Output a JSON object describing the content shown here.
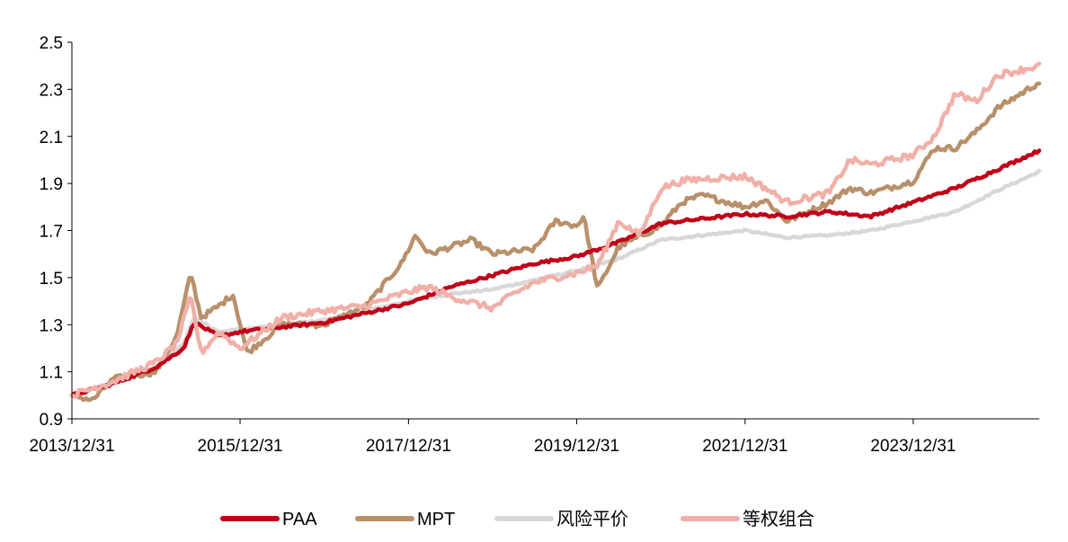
{
  "chart_data": {
    "type": "line",
    "title": "",
    "xlabel": "",
    "ylabel": "",
    "ylim": [
      0.9,
      2.5
    ],
    "xlim": [
      "2013/12/31",
      "2025/06/30"
    ],
    "y_ticks": [
      "0.9",
      "1.1",
      "1.3",
      "1.5",
      "1.7",
      "1.9",
      "2.1",
      "2.3",
      "2.5"
    ],
    "x_ticks": [
      "2013/12/31",
      "2015/12/31",
      "2017/12/31",
      "2019/12/31",
      "2021/12/31",
      "2023/12/31"
    ],
    "grid": false,
    "legend_position": "bottom",
    "series": [
      {
        "name": "PAA",
        "color": "#C00018",
        "points": [
          [
            "2013/12/31",
            1.0
          ],
          [
            "2014/06/30",
            1.05
          ],
          [
            "2014/12/31",
            1.12
          ],
          [
            "2015/04/30",
            1.2
          ],
          [
            "2015/06/15",
            1.31
          ],
          [
            "2015/09/30",
            1.25
          ],
          [
            "2015/12/31",
            1.27
          ],
          [
            "2016/06/30",
            1.29
          ],
          [
            "2016/12/31",
            1.31
          ],
          [
            "2017/06/30",
            1.35
          ],
          [
            "2017/12/31",
            1.39
          ],
          [
            "2018/06/30",
            1.46
          ],
          [
            "2018/12/31",
            1.51
          ],
          [
            "2019/06/30",
            1.56
          ],
          [
            "2019/12/31",
            1.59
          ],
          [
            "2020/06/30",
            1.65
          ],
          [
            "2020/12/31",
            1.73
          ],
          [
            "2021/06/30",
            1.75
          ],
          [
            "2021/12/31",
            1.77
          ],
          [
            "2022/06/30",
            1.76
          ],
          [
            "2022/12/31",
            1.78
          ],
          [
            "2023/06/30",
            1.76
          ],
          [
            "2023/12/31",
            1.82
          ],
          [
            "2024/06/30",
            1.88
          ],
          [
            "2024/12/31",
            1.96
          ],
          [
            "2025/06/30",
            2.04
          ]
        ]
      },
      {
        "name": "MPT",
        "color": "#B8906A",
        "points": [
          [
            "2013/12/31",
            1.0
          ],
          [
            "2014/03/31",
            0.98
          ],
          [
            "2014/06/30",
            1.07
          ],
          [
            "2014/12/31",
            1.1
          ],
          [
            "2015/03/31",
            1.25
          ],
          [
            "2015/05/31",
            1.52
          ],
          [
            "2015/07/15",
            1.33
          ],
          [
            "2015/09/30",
            1.38
          ],
          [
            "2015/11/30",
            1.43
          ],
          [
            "2016/01/31",
            1.18
          ],
          [
            "2016/06/30",
            1.3
          ],
          [
            "2016/12/31",
            1.3
          ],
          [
            "2017/06/30",
            1.38
          ],
          [
            "2017/11/30",
            1.56
          ],
          [
            "2018/01/31",
            1.68
          ],
          [
            "2018/03/31",
            1.6
          ],
          [
            "2018/06/30",
            1.63
          ],
          [
            "2018/09/30",
            1.66
          ],
          [
            "2018/12/31",
            1.6
          ],
          [
            "2019/06/30",
            1.62
          ],
          [
            "2019/09/30",
            1.74
          ],
          [
            "2019/12/31",
            1.72
          ],
          [
            "2020/01/31",
            1.76
          ],
          [
            "2020/03/31",
            1.45
          ],
          [
            "2020/06/30",
            1.63
          ],
          [
            "2020/12/31",
            1.72
          ],
          [
            "2021/03/31",
            1.82
          ],
          [
            "2021/06/30",
            1.85
          ],
          [
            "2021/12/31",
            1.8
          ],
          [
            "2022/03/31",
            1.83
          ],
          [
            "2022/06/30",
            1.74
          ],
          [
            "2022/12/31",
            1.82
          ],
          [
            "2023/03/31",
            1.88
          ],
          [
            "2023/06/30",
            1.86
          ],
          [
            "2023/12/31",
            1.91
          ],
          [
            "2024/03/31",
            2.05
          ],
          [
            "2024/06/30",
            2.05
          ],
          [
            "2024/09/30",
            2.12
          ],
          [
            "2024/12/31",
            2.22
          ],
          [
            "2025/06/30",
            2.33
          ]
        ]
      },
      {
        "name": "风险平价",
        "color": "#D8D8D8",
        "points": [
          [
            "2013/12/31",
            1.0
          ],
          [
            "2014/06/30",
            1.05
          ],
          [
            "2014/12/31",
            1.12
          ],
          [
            "2015/04/30",
            1.22
          ],
          [
            "2015/06/15",
            1.33
          ],
          [
            "2015/09/30",
            1.27
          ],
          [
            "2015/12/31",
            1.28
          ],
          [
            "2016/06/30",
            1.3
          ],
          [
            "2016/12/31",
            1.32
          ],
          [
            "2017/06/30",
            1.36
          ],
          [
            "2017/12/31",
            1.4
          ],
          [
            "2018/06/30",
            1.43
          ],
          [
            "2018/12/31",
            1.45
          ],
          [
            "2019/06/30",
            1.49
          ],
          [
            "2019/12/31",
            1.53
          ],
          [
            "2020/06/30",
            1.58
          ],
          [
            "2020/12/31",
            1.66
          ],
          [
            "2021/06/30",
            1.68
          ],
          [
            "2021/12/31",
            1.7
          ],
          [
            "2022/06/30",
            1.67
          ],
          [
            "2022/12/31",
            1.68
          ],
          [
            "2023/06/30",
            1.7
          ],
          [
            "2023/12/31",
            1.74
          ],
          [
            "2024/06/30",
            1.78
          ],
          [
            "2024/12/31",
            1.87
          ],
          [
            "2025/06/30",
            1.95
          ]
        ]
      },
      {
        "name": "等权组合",
        "color": "#F0B0A8",
        "points": [
          [
            "2013/12/31",
            1.0
          ],
          [
            "2014/06/30",
            1.06
          ],
          [
            "2014/12/31",
            1.14
          ],
          [
            "2015/03/31",
            1.22
          ],
          [
            "2015/05/31",
            1.42
          ],
          [
            "2015/07/15",
            1.18
          ],
          [
            "2015/09/30",
            1.27
          ],
          [
            "2015/12/31",
            1.2
          ],
          [
            "2016/06/30",
            1.33
          ],
          [
            "2016/12/31",
            1.36
          ],
          [
            "2017/06/30",
            1.38
          ],
          [
            "2017/12/31",
            1.44
          ],
          [
            "2018/03/31",
            1.46
          ],
          [
            "2018/06/30",
            1.42
          ],
          [
            "2018/12/31",
            1.37
          ],
          [
            "2019/03/31",
            1.43
          ],
          [
            "2019/06/30",
            1.48
          ],
          [
            "2019/12/31",
            1.52
          ],
          [
            "2020/03/31",
            1.55
          ],
          [
            "2020/06/30",
            1.74
          ],
          [
            "2020/09/30",
            1.68
          ],
          [
            "2020/12/31",
            1.88
          ],
          [
            "2021/03/31",
            1.91
          ],
          [
            "2021/06/30",
            1.92
          ],
          [
            "2021/12/31",
            1.93
          ],
          [
            "2022/03/31",
            1.88
          ],
          [
            "2022/06/30",
            1.82
          ],
          [
            "2022/12/31",
            1.86
          ],
          [
            "2023/03/31",
            2.0
          ],
          [
            "2023/06/30",
            1.98
          ],
          [
            "2023/12/31",
            2.02
          ],
          [
            "2024/03/31",
            2.1
          ],
          [
            "2024/06/30",
            2.28
          ],
          [
            "2024/09/30",
            2.25
          ],
          [
            "2024/12/31",
            2.36
          ],
          [
            "2025/06/30",
            2.4
          ]
        ]
      }
    ]
  }
}
